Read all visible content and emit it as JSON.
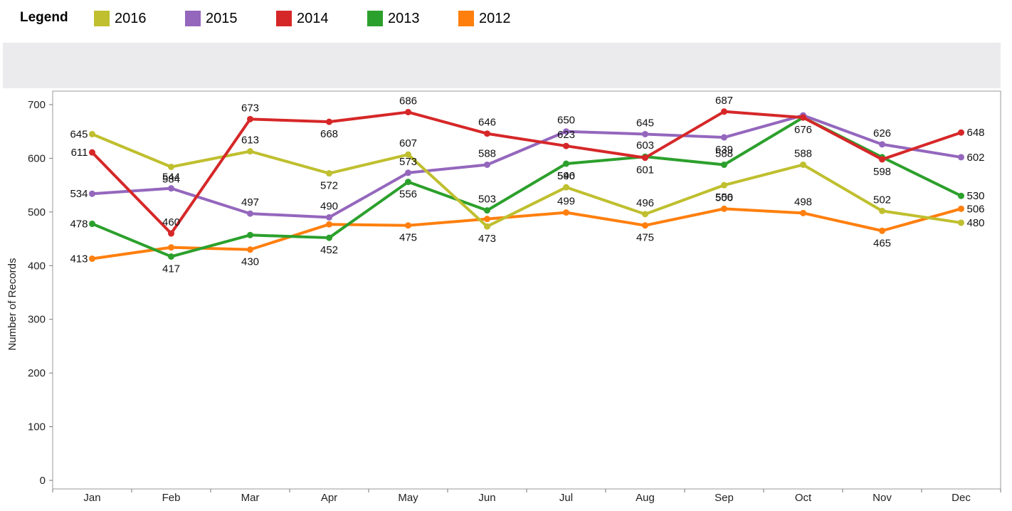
{
  "legend": {
    "title": "Legend",
    "items": [
      {
        "label": "2016",
        "color": "#bfbf2f"
      },
      {
        "label": "2015",
        "color": "#9467bd"
      },
      {
        "label": "2014",
        "color": "#d62728"
      },
      {
        "label": "2013",
        "color": "#2ca02c"
      },
      {
        "label": "2012",
        "color": "#ff7f0e"
      }
    ]
  },
  "chart_data": {
    "type": "line",
    "ylabel": "Number of Records",
    "ylim": [
      0,
      700
    ],
    "yticks": [
      0,
      100,
      200,
      300,
      400,
      500,
      600,
      700
    ],
    "categories": [
      "Jan",
      "Feb",
      "Mar",
      "Apr",
      "May",
      "Jun",
      "Jul",
      "Aug",
      "Sep",
      "Oct",
      "Nov",
      "Dec"
    ],
    "legend_position": "top",
    "series": [
      {
        "name": "2012",
        "color": "#ff7f0e",
        "values": [
          413,
          434,
          430,
          477,
          475,
          487,
          499,
          475,
          506,
          498,
          465,
          506
        ],
        "labels": [
          413,
          null,
          430,
          null,
          475,
          null,
          499,
          475,
          506,
          498,
          465,
          506
        ]
      },
      {
        "name": "2013",
        "color": "#2ca02c",
        "values": [
          478,
          417,
          457,
          452,
          556,
          503,
          590,
          603,
          588,
          676,
          602,
          530
        ],
        "labels": [
          478,
          417,
          null,
          452,
          556,
          503,
          590,
          603,
          588,
          null,
          null,
          530
        ]
      },
      {
        "name": "2015",
        "color": "#9467bd",
        "values": [
          534,
          544,
          497,
          490,
          573,
          588,
          650,
          645,
          639,
          680,
          626,
          602
        ],
        "labels": [
          534,
          544,
          497,
          490,
          573,
          588,
          650,
          645,
          639,
          null,
          626,
          602
        ]
      },
      {
        "name": "2016",
        "color": "#bfbf2f",
        "values": [
          645,
          584,
          613,
          572,
          607,
          473,
          546,
          496,
          550,
          588,
          502,
          480
        ],
        "labels": [
          645,
          584,
          613,
          572,
          607,
          473,
          546,
          496,
          550,
          588,
          502,
          480
        ]
      },
      {
        "name": "2014",
        "color": "#d62728",
        "values": [
          611,
          460,
          673,
          668,
          686,
          646,
          623,
          601,
          687,
          676,
          598,
          648
        ],
        "labels": [
          611,
          460,
          673,
          668,
          686,
          646,
          623,
          601,
          687,
          676,
          598,
          648
        ]
      }
    ]
  }
}
